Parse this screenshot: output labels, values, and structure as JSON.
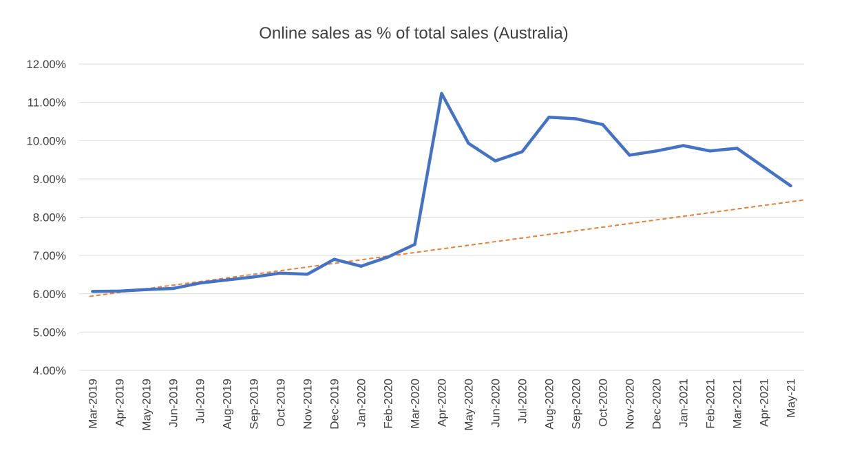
{
  "chart_data": {
    "type": "line",
    "title": "Online sales as % of total sales (Australia)",
    "xlabel": "",
    "ylabel": "",
    "ylim": [
      0.04,
      0.12
    ],
    "yticks": [
      "4.00%",
      "5.00%",
      "6.00%",
      "7.00%",
      "8.00%",
      "9.00%",
      "10.00%",
      "11.00%",
      "12.00%"
    ],
    "categories": [
      "Mar-2019",
      "Apr-2019",
      "May-2019",
      "Jun-2019",
      "Jul-2019",
      "Aug-2019",
      "Sep-2019",
      "Oct-2019",
      "Nov-2019",
      "Dec-2019",
      "Jan-2020",
      "Feb-2020",
      "Mar-2020",
      "Apr-2020",
      "May-2020",
      "Jun-2020",
      "Jul-2020",
      "Aug-2020",
      "Sep-2020",
      "Oct-2020",
      "Nov-2020",
      "Dec-2020",
      "Jan-2021",
      "Feb-2021",
      "Mar-2021",
      "Apr-2021",
      "May-21"
    ],
    "grid": true,
    "series": [
      {
        "color": "#4472c4",
        "values": [
          0.0606,
          0.0607,
          0.0611,
          0.0614,
          0.0628,
          0.0636,
          0.0644,
          0.0654,
          0.0651,
          0.069,
          0.0672,
          0.0696,
          0.0729,
          0.1123,
          0.0993,
          0.0947,
          0.0971,
          0.1061,
          0.1057,
          0.1042,
          0.0962,
          0.0973,
          0.0987,
          0.0973,
          0.098,
          0.0931,
          0.0882
        ]
      }
    ],
    "trendline": {
      "type": "linear",
      "color": "#ed7d31",
      "style": "dashed",
      "start": 0.0593,
      "end": 0.0845
    }
  }
}
